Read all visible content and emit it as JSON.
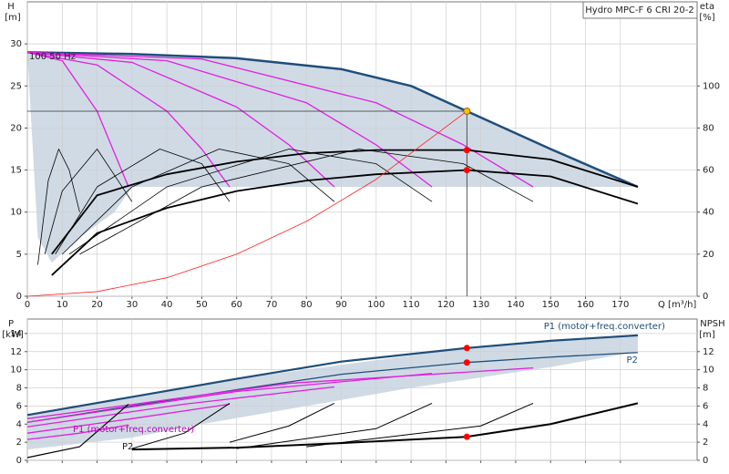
{
  "chart_data": [
    {
      "type": "line",
      "title": "Hydro MPC-F 6 CRI 20-2",
      "ylabel": "H",
      "yunit": "[m]",
      "y2label": "eta",
      "y2unit": "[%]",
      "xlabel": "Q [m³/h]",
      "annotations": [
        "100 50 Hz"
      ],
      "xlim": [
        0,
        192
      ],
      "xticks": [
        0,
        10,
        20,
        30,
        40,
        50,
        60,
        70,
        80,
        90,
        100,
        110,
        120,
        130,
        140,
        150,
        160,
        170
      ],
      "show_xtick_labels": true,
      "ylim": [
        0,
        35
      ],
      "yticks": [
        0,
        5,
        10,
        15,
        20,
        25,
        30
      ],
      "y2lim": [
        0,
        140
      ],
      "y2ticks": [
        0,
        20,
        40,
        60,
        80,
        100
      ],
      "grid": true,
      "band": {
        "color": "#cfdae5",
        "x": [
          0,
          30,
          60,
          90,
          110,
          126,
          150,
          175,
          175,
          30,
          25,
          15,
          7,
          3,
          0
        ],
        "values": [
          29,
          28.8,
          28.3,
          27,
          25,
          22,
          17.5,
          13,
          13,
          13,
          10,
          7,
          4,
          7,
          29
        ]
      },
      "series": [
        {
          "color": "#1f4e79",
          "width": 2.5,
          "x": [
            0,
            30,
            60,
            90,
            110,
            126,
            150,
            175
          ],
          "values": [
            29,
            28.8,
            28.3,
            27,
            25,
            22,
            17.5,
            13
          ]
        },
        {
          "color": "#e020e0",
          "width": 1.3,
          "x": [
            0,
            10,
            20,
            25,
            29
          ],
          "values": [
            29,
            28,
            22,
            17,
            13
          ]
        },
        {
          "color": "#e020e0",
          "width": 1.3,
          "x": [
            0,
            20,
            40,
            50,
            58
          ],
          "values": [
            29,
            27.5,
            22,
            17.5,
            13
          ]
        },
        {
          "color": "#e020e0",
          "width": 1.3,
          "x": [
            0,
            30,
            60,
            75,
            88
          ],
          "values": [
            29,
            27.8,
            22.5,
            18,
            13
          ]
        },
        {
          "color": "#e020e0",
          "width": 1.3,
          "x": [
            0,
            40,
            80,
            100,
            116
          ],
          "values": [
            29,
            28,
            23,
            18,
            13
          ]
        },
        {
          "color": "#e020e0",
          "width": 1.3,
          "x": [
            0,
            50,
            100,
            125,
            145
          ],
          "values": [
            29,
            28.2,
            23,
            18,
            13
          ]
        },
        {
          "color": "#000000",
          "width": 0.8,
          "axis": "y2",
          "x": [
            3,
            6,
            9,
            12,
            15
          ],
          "values": [
            15,
            55,
            70,
            60,
            40
          ]
        },
        {
          "color": "#000000",
          "width": 0.8,
          "axis": "y2",
          "x": [
            5,
            10,
            20,
            30
          ],
          "values": [
            20,
            50,
            70,
            45
          ]
        },
        {
          "color": "#000000",
          "width": 0.8,
          "axis": "y2",
          "x": [
            8,
            20,
            38,
            50,
            58
          ],
          "values": [
            20,
            52,
            70,
            63,
            45
          ]
        },
        {
          "color": "#000000",
          "width": 0.8,
          "axis": "y2",
          "x": [
            10,
            30,
            55,
            75,
            88
          ],
          "values": [
            20,
            52,
            70,
            63,
            45
          ]
        },
        {
          "color": "#000000",
          "width": 0.8,
          "axis": "y2",
          "x": [
            12,
            40,
            75,
            100,
            116
          ],
          "values": [
            20,
            52,
            70,
            63,
            45
          ]
        },
        {
          "color": "#000000",
          "width": 0.8,
          "axis": "y2",
          "x": [
            15,
            50,
            95,
            125,
            145
          ],
          "values": [
            20,
            52,
            70,
            63,
            45
          ]
        },
        {
          "color": "#000000",
          "width": 1.8,
          "axis": "y2",
          "x": [
            7,
            20,
            40,
            60,
            80,
            100,
            126,
            150,
            175
          ],
          "values": [
            20,
            48,
            58,
            64,
            68,
            69.5,
            69.5,
            65,
            52
          ]
        },
        {
          "color": "#000000",
          "width": 1.8,
          "axis": "y2",
          "x": [
            7,
            20,
            40,
            60,
            80,
            100,
            126,
            150,
            175
          ],
          "values": [
            10,
            30,
            42,
            50,
            55,
            58,
            60,
            57,
            44
          ]
        },
        {
          "color": "#ff2020",
          "width": 0.8,
          "x": [
            0,
            20,
            40,
            60,
            80,
            100,
            126
          ],
          "values": [
            0,
            0.55,
            2.2,
            5,
            8.9,
            13.9,
            22
          ]
        }
      ],
      "points": [
        {
          "color": "#ffc000",
          "guide": true,
          "x": [
            126
          ],
          "values": [
            22
          ]
        },
        {
          "color": "#ff0000",
          "axis": "y2",
          "x": [
            126,
            126
          ],
          "values": [
            69.5,
            60
          ]
        }
      ]
    },
    {
      "type": "line",
      "ylabel": "P",
      "yunit": "[kW]",
      "y2label": "NPSH",
      "y2unit": "[m]",
      "annotations": [
        "P1 (motor+freq.converter)",
        "P2"
      ],
      "xlim": [
        0,
        192
      ],
      "xticks": [
        0,
        10,
        20,
        30,
        40,
        50,
        60,
        70,
        80,
        90,
        100,
        110,
        120,
        130,
        140,
        150,
        160,
        170
      ],
      "show_xtick_labels": false,
      "ylim": [
        0,
        15.6
      ],
      "yticks": [
        0,
        2,
        4,
        6,
        8,
        10,
        12,
        14
      ],
      "y2lim": [
        0,
        15.6
      ],
      "y2ticks": [
        0,
        2,
        4,
        6,
        8,
        10,
        12
      ],
      "grid": true,
      "band": {
        "color": "#cfdae5",
        "x": [
          0,
          60,
          126,
          175,
          175,
          150,
          110,
          80,
          50,
          30,
          0
        ],
        "values": [
          5,
          9,
          12.4,
          13.8,
          12,
          10.3,
          8,
          6,
          4,
          2.5,
          1.2
        ]
      },
      "series": [
        {
          "name": "P1 (motor+freq.converter)",
          "color": "#1f4e79",
          "width": 2.2,
          "label_side": "above",
          "x": [
            0,
            30,
            60,
            90,
            126,
            150,
            175
          ],
          "values": [
            5,
            7,
            9,
            10.9,
            12.4,
            13.2,
            13.8
          ]
        },
        {
          "name": "P2",
          "color": "#1f4e79",
          "width": 1.3,
          "label_side": "below",
          "x": [
            0,
            30,
            60,
            90,
            126,
            150,
            175
          ],
          "values": [
            4.2,
            6,
            7.8,
            9.5,
            10.8,
            11.4,
            11.9
          ]
        },
        {
          "color": "#e020e0",
          "width": 1.3,
          "x": [
            0,
            15,
            29
          ],
          "values": [
            2.3,
            3,
            3.9
          ]
        },
        {
          "color": "#e020e0",
          "width": 1.3,
          "x": [
            0,
            30,
            58
          ],
          "values": [
            3,
            4.6,
            6.2
          ]
        },
        {
          "color": "#e020e0",
          "width": 1.3,
          "x": [
            0,
            45,
            88
          ],
          "values": [
            3.7,
            6.2,
            8.1
          ]
        },
        {
          "color": "#e020e0",
          "width": 1.3,
          "x": [
            0,
            60,
            116
          ],
          "values": [
            4.2,
            7.6,
            9.6
          ]
        },
        {
          "color": "#e020e0",
          "width": 1.3,
          "x": [
            0,
            75,
            145
          ],
          "values": [
            4.6,
            8.5,
            10.2
          ]
        },
        {
          "color": "#000000",
          "width": 1.2,
          "axis": "y2",
          "x": [
            0,
            15,
            29
          ],
          "values": [
            0.3,
            1.5,
            6.2
          ]
        },
        {
          "color": "#000000",
          "width": 1,
          "axis": "y2",
          "x": [
            30,
            45,
            58
          ],
          "values": [
            1.3,
            3,
            6.3
          ]
        },
        {
          "color": "#000000",
          "width": 1,
          "axis": "y2",
          "x": [
            58,
            75,
            88
          ],
          "values": [
            2,
            3.8,
            6.3
          ]
        },
        {
          "color": "#000000",
          "width": 1,
          "axis": "y2",
          "x": [
            60,
            100,
            116
          ],
          "values": [
            1.3,
            3.5,
            6.3
          ]
        },
        {
          "color": "#000000",
          "width": 1,
          "axis": "y2",
          "x": [
            80,
            130,
            145
          ],
          "values": [
            1.5,
            3.8,
            6.3
          ]
        },
        {
          "color": "#000000",
          "width": 2,
          "axis": "y2",
          "x": [
            30,
            60,
            90,
            126,
            150,
            175
          ],
          "values": [
            1.2,
            1.4,
            1.9,
            2.6,
            4,
            6.3
          ]
        }
      ],
      "points": [
        {
          "color": "#ff0000",
          "x": [
            126,
            126
          ],
          "values": [
            12.4,
            10.8
          ]
        },
        {
          "color": "#ff0000",
          "axis": "y2",
          "x": [
            126
          ],
          "values": [
            2.6
          ]
        }
      ]
    }
  ]
}
